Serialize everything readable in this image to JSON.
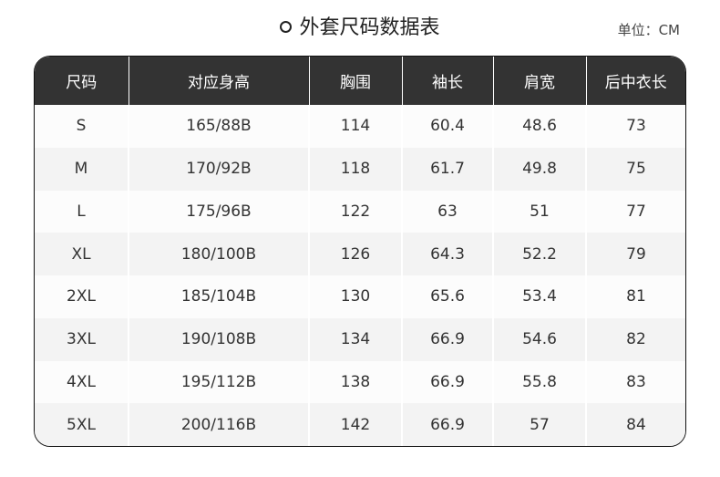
{
  "title": "外套尺码数据表",
  "unit": "单位：CM",
  "table": {
    "headers": [
      "尺码",
      "对应身高",
      "胸围",
      "袖长",
      "肩宽",
      "后中衣长"
    ],
    "rows": [
      [
        "S",
        "165/88B",
        "114",
        "60.4",
        "48.6",
        "73"
      ],
      [
        "M",
        "170/92B",
        "118",
        "61.7",
        "49.8",
        "75"
      ],
      [
        "L",
        "175/96B",
        "122",
        "63",
        "51",
        "77"
      ],
      [
        "XL",
        "180/100B",
        "126",
        "64.3",
        "52.2",
        "79"
      ],
      [
        "2XL",
        "185/104B",
        "130",
        "65.6",
        "53.4",
        "81"
      ],
      [
        "3XL",
        "190/108B",
        "134",
        "66.9",
        "54.6",
        "82"
      ],
      [
        "4XL",
        "195/112B",
        "138",
        "66.9",
        "55.8",
        "83"
      ],
      [
        "5XL",
        "200/116B",
        "142",
        "66.9",
        "57",
        "84"
      ]
    ]
  }
}
